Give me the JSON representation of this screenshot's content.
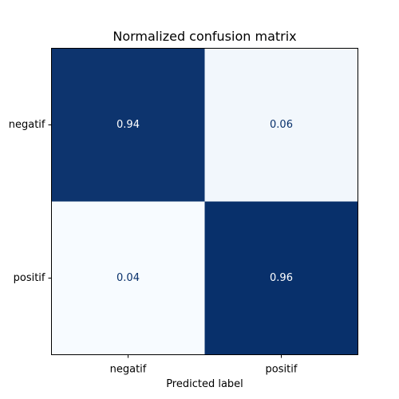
{
  "chart_data": {
    "type": "heatmap",
    "title": "Normalized confusion matrix",
    "xlabel": "Predicted label",
    "ylabel": "",
    "x_categories": [
      "negatif",
      "positif"
    ],
    "y_categories": [
      "negatif",
      "positif"
    ],
    "values": [
      [
        0.94,
        0.06
      ],
      [
        0.04,
        0.96
      ]
    ],
    "value_labels": [
      [
        "0.94",
        "0.06"
      ],
      [
        "0.04",
        "0.96"
      ]
    ],
    "colormap": "Blues",
    "grid": false,
    "legend": "none"
  },
  "colors": {
    "high": "#08306b",
    "low": "#f7fbff",
    "text_on_dark": "#ffffff",
    "text_on_light": "#08306b"
  }
}
